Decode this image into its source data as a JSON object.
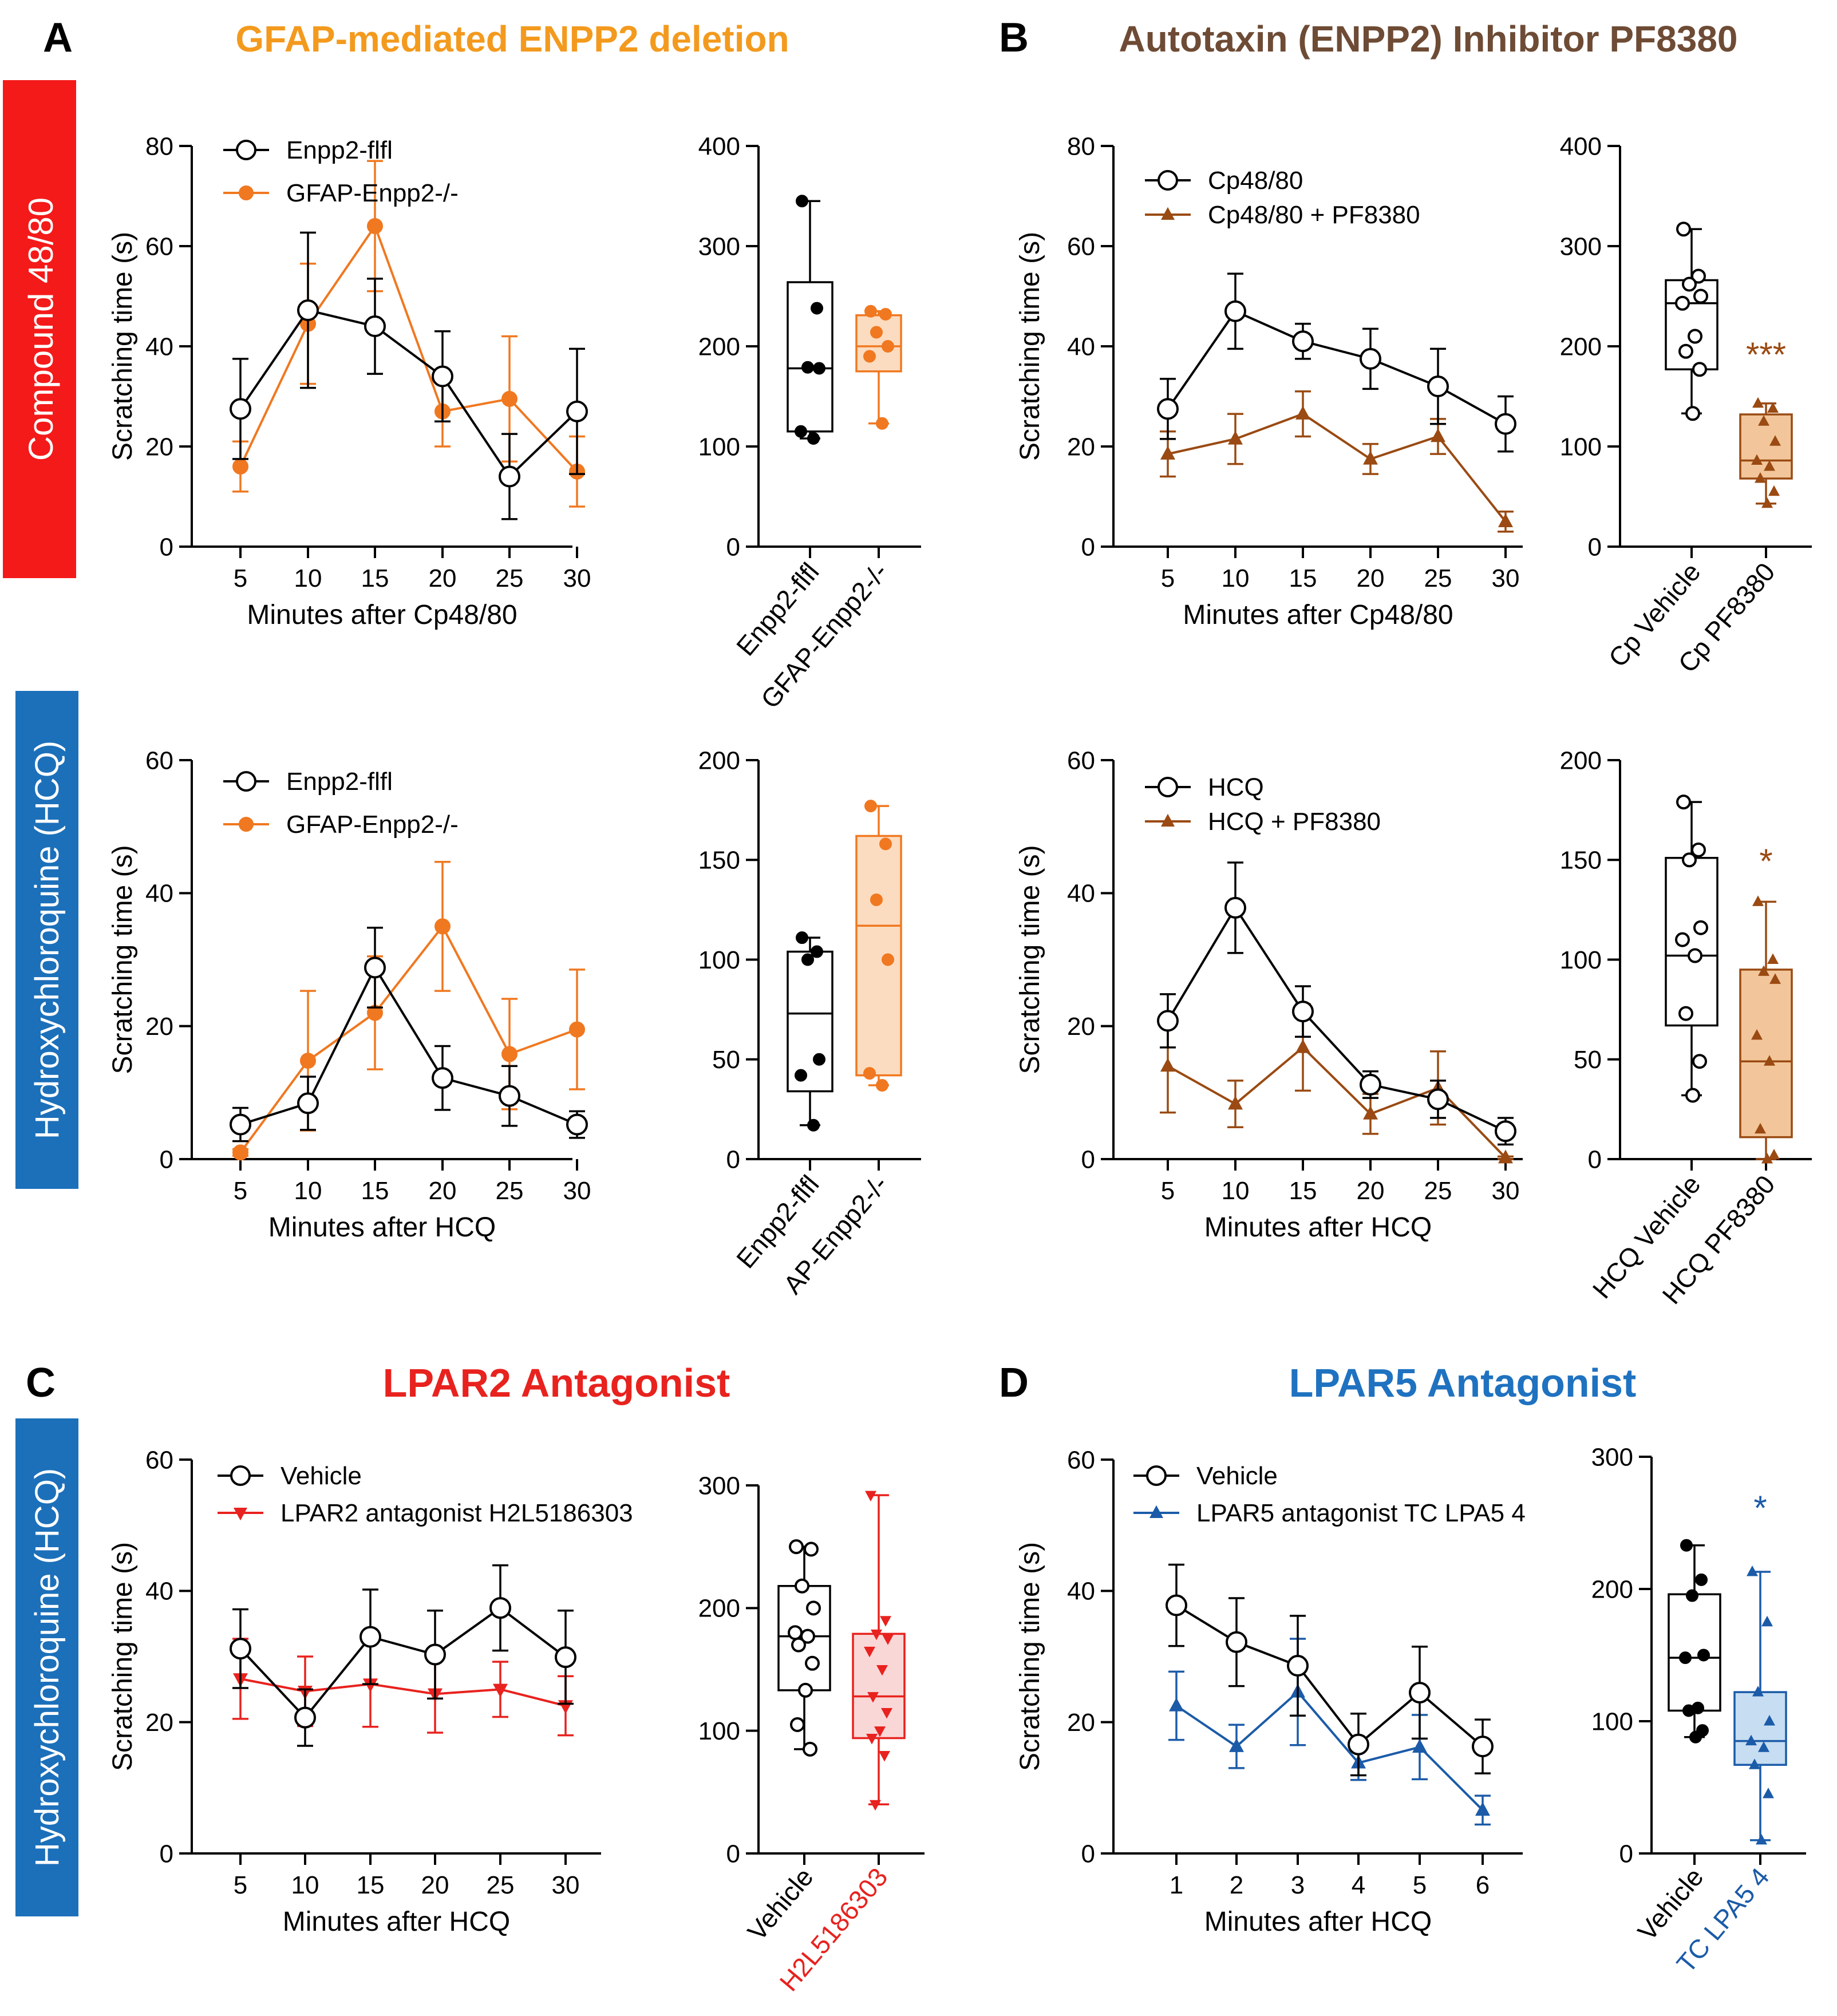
{
  "colors": {
    "black": "#000000",
    "orange": "#F07820",
    "orange_title": "#F39A1E",
    "orange_fill": "#FCDCC0",
    "brown": "#9A4A12",
    "brown_title": "#6E4B35",
    "brown_fill": "#F2C69A",
    "red": "#E8221E",
    "red_fill": "#FAD7D7",
    "blue": "#1B5BA8",
    "blue_title": "#1F72C0",
    "blue_fill": "#C6DDF2",
    "band_red": "#F41A1A",
    "band_blue": "#1C70BA"
  },
  "panels": {
    "A": {
      "letter": "A",
      "title": "GFAP-mediated ENPP2 deletion"
    },
    "B": {
      "letter": "B",
      "title": "Autotaxin (ENPP2) Inhibitor PF8380"
    },
    "C": {
      "letter": "C",
      "title": "LPAR2 Antagonist"
    },
    "D": {
      "letter": "D",
      "title": "LPAR5 Antagonist"
    }
  },
  "row_labels": {
    "row1": "Compound 48/80",
    "row2": "Hydroxychloroquine (HCQ)",
    "row3": "Hydroxychloroquine (HCQ)"
  },
  "chart_data": [
    {
      "id": "A1-line",
      "type": "line",
      "title": "",
      "xlabel": "Minutes after Cp48/80",
      "ylabel": "Scratching time (s)",
      "x": [
        5,
        10,
        15,
        20,
        25,
        30
      ],
      "ylim": [
        0,
        80
      ],
      "yticks": [
        0,
        20,
        40,
        60,
        80
      ],
      "series": [
        {
          "name": "Enpp2-flfl",
          "marker": "open-circle",
          "color": "#000000",
          "values": [
            27.5,
            47.2,
            44.0,
            34.0,
            14.0,
            27.0
          ],
          "errors": [
            10.0,
            15.5,
            9.5,
            9.0,
            8.5,
            12.5
          ]
        },
        {
          "name": "GFAP-Enpp2-/-",
          "marker": "filled-circle",
          "color": "#F07820",
          "values": [
            16.0,
            44.5,
            64.0,
            27.0,
            29.5,
            15.0
          ],
          "errors": [
            5.0,
            12.0,
            13.0,
            7.0,
            12.5,
            7.0
          ]
        }
      ]
    },
    {
      "id": "A1-box",
      "type": "box",
      "ylim": [
        0,
        400
      ],
      "yticks": [
        0,
        100,
        200,
        300,
        400
      ],
      "groups": [
        {
          "name": "Enpp2-flfl",
          "marker": "filled-circle",
          "color": "#000000",
          "fill": "#ffffff",
          "min": 108,
          "q1": 115,
          "median": 178,
          "q3": 264,
          "max": 345,
          "points": [
            345,
            238,
            179,
            178,
            115,
            108
          ]
        },
        {
          "name": "GFAP-Enpp2-/-",
          "marker": "filled-circle",
          "color": "#F07820",
          "fill": "#FCDCC0",
          "min": 123,
          "q1": 175,
          "median": 200,
          "q3": 231,
          "max": 235,
          "points": [
            235,
            232,
            214,
            200,
            190,
            123
          ]
        }
      ]
    },
    {
      "id": "A2-line",
      "type": "line",
      "title": "",
      "xlabel": "Minutes after  HCQ",
      "ylabel": "Scratching time (s)",
      "x": [
        5,
        10,
        15,
        20,
        25,
        30
      ],
      "ylim": [
        0,
        60
      ],
      "yticks": [
        0,
        20,
        40,
        60
      ],
      "series": [
        {
          "name": "Enpp2-flfl",
          "marker": "open-circle",
          "color": "#000000",
          "values": [
            5.2,
            8.4,
            28.8,
            12.2,
            9.5,
            5.2
          ],
          "errors": [
            2.5,
            4.0,
            6.0,
            4.8,
            4.5,
            2.0
          ]
        },
        {
          "name": "GFAP-Enpp2-/-",
          "marker": "filled-circle",
          "color": "#F07820",
          "values": [
            1.0,
            14.8,
            22.0,
            35.0,
            15.8,
            19.5
          ],
          "errors": [
            0.5,
            10.5,
            8.5,
            9.7,
            8.3,
            9.0
          ]
        }
      ]
    },
    {
      "id": "A2-box",
      "type": "box",
      "ylim": [
        0,
        200
      ],
      "yticks": [
        0,
        50,
        100,
        150,
        200
      ],
      "groups": [
        {
          "name": "Enpp2-flfl",
          "marker": "filled-circle",
          "color": "#000000",
          "fill": "#ffffff",
          "min": 17,
          "q1": 34,
          "median": 73,
          "q3": 104,
          "max": 111,
          "points": [
            111,
            104,
            100,
            50,
            42,
            17
          ]
        },
        {
          "name": "AP-Enpp2-/-",
          "marker": "filled-circle",
          "color": "#F07820",
          "fill": "#FCDCC0",
          "min": 37,
          "q1": 42,
          "median": 117,
          "q3": 162,
          "max": 177,
          "points": [
            177,
            158,
            130,
            100,
            43,
            37
          ]
        }
      ]
    },
    {
      "id": "B1-line",
      "type": "line",
      "title": "",
      "xlabel": "Minutes after Cp48/80",
      "ylabel": "Scratching time (s)",
      "x": [
        5,
        10,
        15,
        20,
        25,
        30
      ],
      "ylim": [
        0,
        80
      ],
      "yticks": [
        0,
        20,
        40,
        60,
        80
      ],
      "series": [
        {
          "name": "Cp48/80",
          "marker": "open-circle",
          "color": "#000000",
          "values": [
            27.5,
            47.0,
            41.0,
            37.5,
            32.0,
            24.5
          ],
          "errors": [
            6.0,
            7.5,
            3.5,
            6.0,
            7.5,
            5.5
          ]
        },
        {
          "name": "Cp48/80 + PF8380",
          "marker": "filled-triangle",
          "color": "#9A4A12",
          "values": [
            18.5,
            21.5,
            26.5,
            17.5,
            22.0,
            5.0
          ],
          "errors": [
            4.5,
            5.0,
            4.5,
            3.0,
            3.5,
            2.0
          ]
        }
      ]
    },
    {
      "id": "B1-box",
      "type": "box",
      "ylim": [
        0,
        400
      ],
      "yticks": [
        0,
        100,
        200,
        300,
        400
      ],
      "significance": "***",
      "groups": [
        {
          "name": "Cp Vehicle",
          "marker": "open-circle",
          "color": "#000000",
          "fill": "#ffffff",
          "min": 133,
          "q1": 177,
          "median": 243,
          "q3": 266,
          "max": 317,
          "points": [
            317,
            270,
            262,
            250,
            243,
            210,
            195,
            177,
            133
          ]
        },
        {
          "name": "Cp PF8380",
          "marker": "filled-triangle",
          "color": "#9A4A12",
          "fill": "#F2C69A",
          "min": 43,
          "q1": 68,
          "median": 86,
          "q3": 132,
          "max": 143,
          "points": [
            143,
            138,
            125,
            105,
            86,
            80,
            68,
            55,
            43
          ]
        }
      ]
    },
    {
      "id": "B2-line",
      "type": "line",
      "title": "",
      "xlabel": "Minutes after  HCQ",
      "ylabel": "Scratching time (s)",
      "x": [
        5,
        10,
        15,
        20,
        25,
        30
      ],
      "ylim": [
        0,
        60
      ],
      "yticks": [
        0,
        20,
        40,
        60
      ],
      "series": [
        {
          "name": "HCQ",
          "marker": "open-circle",
          "color": "#000000",
          "values": [
            20.8,
            37.8,
            22.2,
            11.2,
            9.0,
            4.2
          ],
          "errors": [
            4.0,
            6.8,
            3.8,
            2.0,
            2.8,
            2.0
          ]
        },
        {
          "name": "HCQ + PF8380",
          "marker": "filled-triangle",
          "color": "#9A4A12",
          "values": [
            14.0,
            8.3,
            16.8,
            6.8,
            10.7,
            0.2
          ],
          "errors": [
            7.0,
            3.5,
            6.5,
            3.0,
            5.5,
            0.2
          ]
        }
      ]
    },
    {
      "id": "B2-box",
      "type": "box",
      "ylim": [
        0,
        200
      ],
      "yticks": [
        0,
        50,
        100,
        150,
        200
      ],
      "significance": "*",
      "groups": [
        {
          "name": "HCQ Vehicle",
          "marker": "open-circle",
          "color": "#000000",
          "fill": "#ffffff",
          "min": 32,
          "q1": 67,
          "median": 102,
          "q3": 151,
          "max": 179,
          "points": [
            179,
            155,
            150,
            116,
            110,
            102,
            73,
            49,
            32
          ]
        },
        {
          "name": "HCQ PF8380",
          "marker": "filled-triangle",
          "color": "#9A4A12",
          "fill": "#F2C69A",
          "min": 0,
          "q1": 11,
          "median": 49,
          "q3": 95,
          "max": 129,
          "points": [
            129,
            100,
            94,
            90,
            62,
            49,
            15,
            2,
            0
          ]
        }
      ]
    },
    {
      "id": "C-line",
      "type": "line",
      "title": "",
      "xlabel": "Minutes after HCQ",
      "ylabel": "Scratching time (s)",
      "x": [
        5,
        10,
        15,
        20,
        25,
        30
      ],
      "ylim": [
        0,
        60
      ],
      "yticks": [
        0,
        20,
        40,
        60
      ],
      "series": [
        {
          "name": "Vehicle",
          "marker": "open-circle",
          "color": "#000000",
          "values": [
            31.2,
            20.7,
            33.0,
            30.3,
            37.4,
            29.9
          ],
          "errors": [
            6.0,
            4.3,
            7.2,
            6.7,
            6.5,
            7.1
          ]
        },
        {
          "name": "LPAR2 antagonist H2L5186303",
          "marker": "filled-triangle-down",
          "color": "#E8221E",
          "values": [
            26.6,
            24.7,
            25.8,
            24.3,
            25.0,
            22.5
          ],
          "errors": [
            6.1,
            5.3,
            6.5,
            5.9,
            4.2,
            4.5
          ]
        }
      ]
    },
    {
      "id": "C-box",
      "type": "box",
      "ylim": [
        0,
        300
      ],
      "yticks": [
        0,
        100,
        200,
        300
      ],
      "groups": [
        {
          "name": "Vehicle",
          "marker": "open-circle",
          "color": "#000000",
          "fill": "#ffffff",
          "min": 85,
          "q1": 133,
          "median": 177,
          "q3": 218,
          "max": 250,
          "points": [
            250,
            248,
            218,
            200,
            180,
            177,
            170,
            155,
            133,
            105,
            85
          ]
        },
        {
          "name": "H2L5186303",
          "marker": "filled-triangle-down",
          "color": "#E8221E",
          "fill": "#FAD7D7",
          "min": 40,
          "q1": 94,
          "median": 128,
          "q3": 179,
          "max": 292,
          "points": [
            292,
            190,
            179,
            175,
            165,
            150,
            128,
            115,
            100,
            94,
            80,
            40
          ]
        }
      ]
    },
    {
      "id": "D-line",
      "type": "line",
      "title": "",
      "xlabel": "Minutes after HCQ",
      "ylabel": "Scratching time (s)",
      "x": [
        1,
        2,
        3,
        4,
        5,
        6
      ],
      "ylim": [
        0,
        60
      ],
      "yticks": [
        0,
        20,
        40,
        60
      ],
      "series": [
        {
          "name": "Vehicle",
          "marker": "open-circle",
          "color": "#000000",
          "values": [
            37.8,
            32.2,
            28.6,
            16.6,
            24.5,
            16.3
          ],
          "errors": [
            6.2,
            6.7,
            7.6,
            4.7,
            7.0,
            4.1
          ]
        },
        {
          "name": "LPAR5 antagonist TC LPA5 4",
          "marker": "filled-triangle",
          "color": "#1B5BA8",
          "values": [
            22.5,
            16.3,
            24.6,
            13.8,
            16.2,
            6.6
          ],
          "errors": [
            5.2,
            3.3,
            8.1,
            2.6,
            4.9,
            2.2
          ]
        }
      ]
    },
    {
      "id": "D-box",
      "type": "box",
      "ylim": [
        0,
        300
      ],
      "yticks": [
        0,
        100,
        200,
        300
      ],
      "significance": "*",
      "groups": [
        {
          "name": "Vehicle",
          "marker": "filled-circle",
          "color": "#000000",
          "fill": "#ffffff",
          "min": 88,
          "q1": 108,
          "median": 148,
          "q3": 196,
          "max": 233,
          "points": [
            233,
            207,
            195,
            150,
            148,
            110,
            108,
            93,
            88
          ]
        },
        {
          "name": "TC LPA5 4",
          "marker": "filled-triangle",
          "color": "#1B5BA8",
          "fill": "#C6DDF2",
          "min": 10,
          "q1": 67,
          "median": 85,
          "q3": 122,
          "max": 213,
          "points": [
            213,
            175,
            122,
            100,
            85,
            80,
            67,
            45,
            10
          ]
        }
      ]
    }
  ]
}
